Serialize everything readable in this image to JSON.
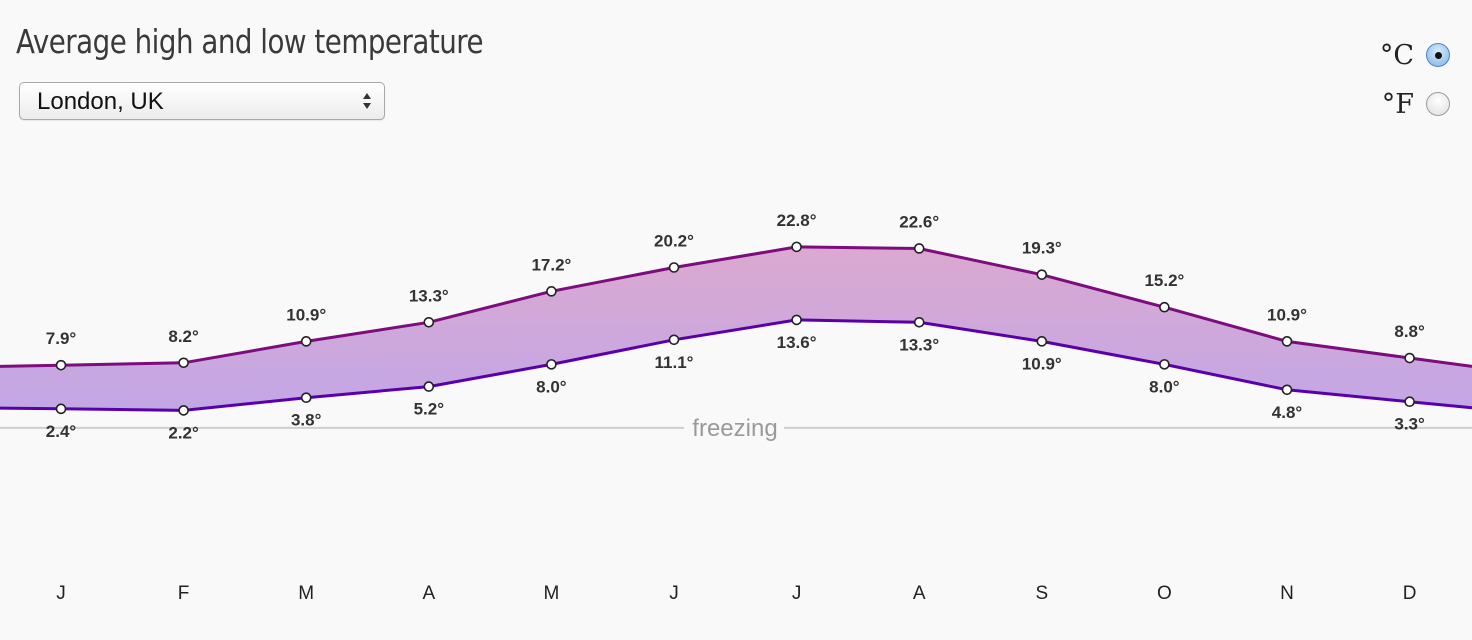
{
  "title": "Average high and low temperature",
  "location": {
    "selected": "London, UK"
  },
  "units": [
    {
      "label": "°C",
      "checked": true
    },
    {
      "label": "°F",
      "checked": false
    }
  ],
  "chart_data": {
    "type": "area",
    "title": "Average high and low temperature",
    "categories": [
      "J",
      "F",
      "M",
      "A",
      "M",
      "J",
      "J",
      "A",
      "S",
      "O",
      "N",
      "D"
    ],
    "series": [
      {
        "name": "",
        "values": [
          7.9,
          8.2,
          10.9,
          13.3,
          17.2,
          20.2,
          22.8,
          22.6,
          19.3,
          15.2,
          10.9,
          8.8
        ]
      },
      {
        "name": "",
        "values": [
          2.4,
          2.2,
          3.8,
          5.2,
          8.0,
          11.1,
          13.6,
          13.3,
          10.9,
          8.0,
          4.8,
          3.3
        ]
      }
    ],
    "value_suffix": "°",
    "reference_line": {
      "label": "freezing",
      "value": 0
    },
    "ylim": [
      -15,
      35
    ],
    "grid": false,
    "colors": {
      "high_line": "#7d0c7c",
      "low_line": "#5a00a8",
      "fill_top": "#dba8cf",
      "fill_bottom": "#c2a7e6",
      "freezing_line": "#cfcfcf"
    }
  }
}
